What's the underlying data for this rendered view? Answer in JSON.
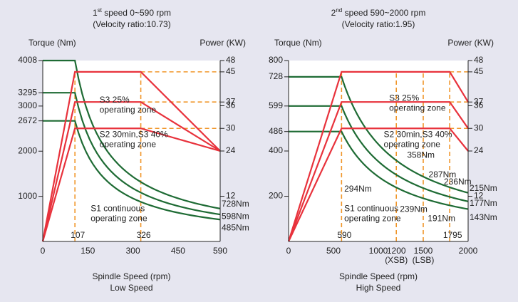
{
  "colors": {
    "background": "#e6e6f0",
    "plot_bg": "#ffffff",
    "red": "#e8323c",
    "green": "#1e6b34",
    "orange": "#f0962a",
    "axis": "#222222"
  },
  "chart_data": [
    {
      "type": "line",
      "title_prefix": "1",
      "title_sup": "st",
      "title_rest": " speed 0~590 rpm",
      "subtitle": "(Velocity ratio:10.73)",
      "ylabel_left": "Torque (Nm)",
      "ylabel_right": "Power (KW)",
      "xlabel": "Spindle Speed (rpm)",
      "xlabel2": "Low Speed",
      "xlim": [
        0,
        590
      ],
      "ylim_left": [
        0,
        4008
      ],
      "ylim_right": [
        0,
        48
      ],
      "x_ticks": [
        {
          "v": 0,
          "t": "0"
        },
        {
          "v": 150,
          "t": "150"
        },
        {
          "v": 300,
          "t": "300"
        },
        {
          "v": 450,
          "t": "450"
        },
        {
          "v": 590,
          "t": "590"
        }
      ],
      "x_inner_ticks": [
        {
          "v": 107,
          "t": "107"
        },
        {
          "v": 326,
          "t": "326"
        }
      ],
      "left_ticks": [
        {
          "v": 4008,
          "t": "4008"
        },
        {
          "v": 3295,
          "t": "3295"
        },
        {
          "v": 3000,
          "t": "3000"
        },
        {
          "v": 2672,
          "t": "2672"
        },
        {
          "v": 2000,
          "t": "2000"
        },
        {
          "v": 1000,
          "t": "1000"
        }
      ],
      "right_ticks": [
        {
          "v": 48,
          "t": "48"
        },
        {
          "v": 45,
          "t": "45"
        },
        {
          "v": 37,
          "t": "37"
        },
        {
          "v": 36,
          "t": "36"
        },
        {
          "v": 30,
          "t": "30"
        },
        {
          "v": 24,
          "t": "24"
        },
        {
          "v": 12,
          "t": "12"
        }
      ],
      "torque_lines": [
        {
          "plateau": 4008,
          "corner": 107,
          "end": 728,
          "label": "728Nm"
        },
        {
          "plateau": 3295,
          "corner": 107,
          "end": 598,
          "label": "598Nm"
        },
        {
          "plateau": 2672,
          "corner": 107,
          "end": 485,
          "label": "485Nm"
        }
      ],
      "power_lines": [
        {
          "level": 45,
          "corner_x": 107,
          "flat_end": 326,
          "end_y": 24
        },
        {
          "level": 37,
          "corner_x": 107,
          "flat_end": 326,
          "end_y": 24
        },
        {
          "level": 30,
          "corner_x": 107,
          "flat_end": 326,
          "end_y": 24
        }
      ],
      "orange_v": [
        107,
        326
      ],
      "orange_h_right": [
        45,
        37,
        30
      ],
      "zones": [
        {
          "lines": [
            "S3 25%",
            "operating zone"
          ],
          "x": 0.32,
          "y": 0.22
        },
        {
          "lines": [
            "S2 30min,S3 40%",
            "operating zone"
          ],
          "x": 0.32,
          "y": 0.41
        },
        {
          "lines": [
            "S1 continuous",
            "operating zone"
          ],
          "x": 0.27,
          "y": 0.82
        }
      ],
      "annotations": []
    },
    {
      "type": "line",
      "title_prefix": "2",
      "title_sup": "nd",
      "title_rest": " speed 590~2000 rpm",
      "subtitle": "(Velocity ratio:1.95)",
      "ylabel_left": "Torque (Nm)",
      "ylabel_right": "Power (KW)",
      "xlabel": "Spindle Speed (rpm)",
      "xlabel2": "High Speed",
      "xlim": [
        0,
        2000
      ],
      "ylim_left": [
        0,
        800
      ],
      "ylim_right": [
        0,
        48
      ],
      "x_ticks": [
        {
          "v": 0,
          "t": "0"
        },
        {
          "v": 500,
          "t": "500"
        },
        {
          "v": 1000,
          "t": "1000"
        },
        {
          "v": 1200,
          "t": "1200"
        },
        {
          "v": 1500,
          "t": "1500"
        },
        {
          "v": 2000,
          "t": "2000"
        }
      ],
      "x_sub_labels": [
        {
          "v": 1200,
          "t": "(XSB)"
        },
        {
          "v": 1500,
          "t": "(LSB)"
        }
      ],
      "x_inner_ticks": [
        {
          "v": 590,
          "t": "590"
        },
        {
          "v": 1795,
          "t": "1795"
        }
      ],
      "left_ticks": [
        {
          "v": 800,
          "t": "800"
        },
        {
          "v": 728,
          "t": "728"
        },
        {
          "v": 599,
          "t": "599"
        },
        {
          "v": 486,
          "t": "486"
        },
        {
          "v": 400,
          "t": "400"
        },
        {
          "v": 200,
          "t": "200"
        }
      ],
      "right_ticks": [
        {
          "v": 48,
          "t": "48"
        },
        {
          "v": 45,
          "t": "45"
        },
        {
          "v": 37,
          "t": "37"
        },
        {
          "v": 36,
          "t": "36"
        },
        {
          "v": 30,
          "t": "30"
        },
        {
          "v": 24,
          "t": "24"
        },
        {
          "v": 12,
          "t": "12"
        }
      ],
      "torque_lines": [
        {
          "plateau": 728,
          "corner": 590,
          "end": 215,
          "label": "215Nm"
        },
        {
          "plateau": 599,
          "corner": 590,
          "end": 177,
          "label": "177Nm"
        },
        {
          "plateau": 486,
          "corner": 590,
          "end": 143,
          "label": "143Nm"
        }
      ],
      "power_lines": [
        {
          "level": 45,
          "corner_x": 590,
          "flat_end": 1795,
          "end_y": 37
        },
        {
          "level": 37,
          "corner_x": 590,
          "flat_end": 1795,
          "end_y": 30
        },
        {
          "level": 30,
          "corner_x": 590,
          "flat_end": 1795,
          "end_y": 24
        }
      ],
      "orange_v": [
        590,
        1200,
        1500,
        1795
      ],
      "orange_h_right": [
        45,
        37,
        30
      ],
      "zones": [
        {
          "lines": [
            "S3 25%",
            "operating zone"
          ],
          "x": 0.56,
          "y": 0.21
        },
        {
          "lines": [
            "S2 30min,S3 40%",
            "operating zone"
          ],
          "x": 0.53,
          "y": 0.41
        },
        {
          "lines": [
            "S1 continuous",
            "operating zone"
          ],
          "x": 0.31,
          "y": 0.82
        }
      ],
      "annotations": [
        {
          "t": "358Nm",
          "x": 1320,
          "y": 380
        },
        {
          "t": "287Nm",
          "x": 1560,
          "y": 293
        },
        {
          "t": "236Nm",
          "x": 1730,
          "y": 262
        },
        {
          "t": "294Nm",
          "x": 620,
          "y": 230
        },
        {
          "t": "239Nm",
          "x": 1240,
          "y": 140
        },
        {
          "t": "191Nm",
          "x": 1550,
          "y": 100
        }
      ]
    }
  ]
}
